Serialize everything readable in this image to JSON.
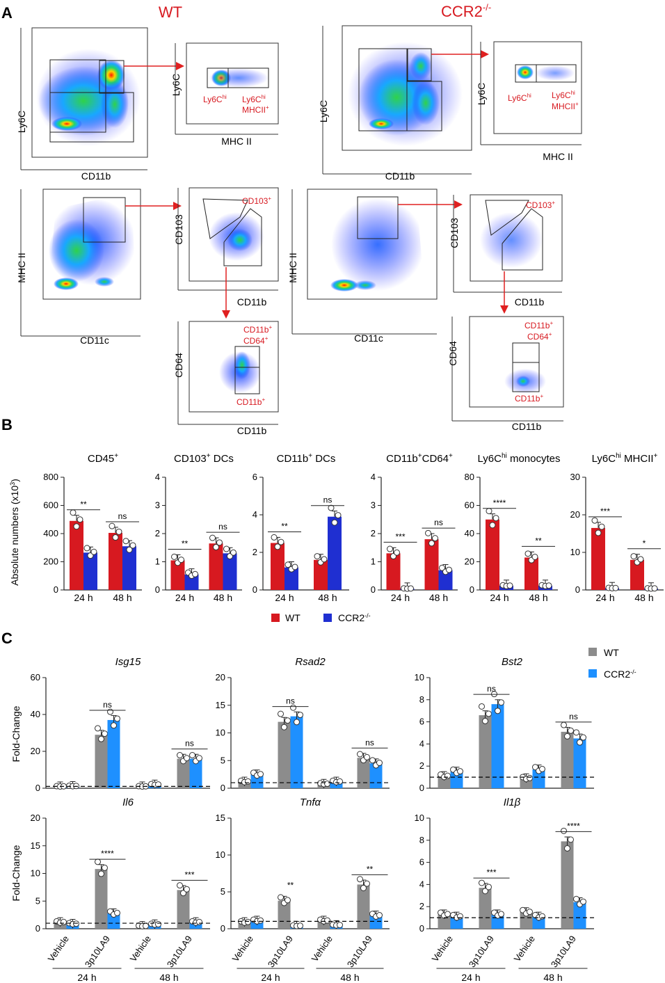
{
  "panel_labels": {
    "a": "A",
    "b": "B",
    "c": "C"
  },
  "panelA": {
    "wt_title": "WT",
    "ccr2_title": "CCR2",
    "ccr2_sup": "-/-",
    "axes": {
      "ly6c": "Ly6C",
      "cd11b": "CD11b",
      "mhcii": "MHC II",
      "cd11c": "CD11c",
      "cd103": "CD103",
      "cd64": "CD64"
    },
    "gates": {
      "ly6c_main": "Ly6C",
      "ly6c_hi_sup": "hi",
      "mhcii_plus": "MHCII",
      "plus_sup": "+",
      "cd103": "CD103",
      "cd11b": "CD11b",
      "cd64": "CD64"
    }
  },
  "panelB": {
    "ylabel": "Absolute numbers (x10",
    "ylabel_sup": "3",
    "ylabel_end": ")",
    "xlabels": [
      "24 h",
      "48 h"
    ],
    "legend": [
      {
        "label": "WT",
        "color": "#d71920"
      },
      {
        "label": "CCR2",
        "sup": "-/-",
        "color": "#1f2fd1"
      }
    ]
  },
  "panelC": {
    "ylabel": "Fold-Change",
    "xlabels": [
      "Vehicle",
      "3p10LA9",
      "Vehicle",
      "3p10LA9"
    ],
    "time_labels": [
      "24 h",
      "48 h"
    ],
    "legend": [
      {
        "label": "WT",
        "color": "#8c8c8c"
      },
      {
        "label": "CCR2",
        "sup": "-/-",
        "color": "#1e90ff"
      }
    ]
  },
  "chart_data": [
    {
      "type": "bar",
      "id": "b_cd45",
      "title": "CD45",
      "title_sup": "+",
      "categories": [
        "24 h",
        "48 h"
      ],
      "ylim": [
        0,
        800
      ],
      "ticks": [
        0,
        200,
        400,
        600,
        800
      ],
      "series": [
        {
          "name": "WT",
          "values": [
            490,
            405
          ]
        },
        {
          "name": "CCR2-/-",
          "values": [
            265,
            310
          ]
        }
      ],
      "sig": [
        {
          "label": "**"
        },
        {
          "label": "ns"
        }
      ]
    },
    {
      "type": "bar",
      "id": "b_cd103",
      "title": "CD103",
      "title_sup": "+",
      "title_tail": " DCs",
      "categories": [
        "24 h",
        "48 h"
      ],
      "ylim": [
        0,
        4
      ],
      "ticks": [
        0,
        1,
        2,
        3,
        4
      ],
      "series": [
        {
          "name": "WT",
          "values": [
            1.05,
            1.65
          ]
        },
        {
          "name": "CCR2-/-",
          "values": [
            0.55,
            1.3
          ]
        }
      ],
      "sig": [
        {
          "label": "**"
        },
        {
          "label": "ns"
        }
      ]
    },
    {
      "type": "bar",
      "id": "b_cd11b",
      "title": "CD11b",
      "title_sup": "+",
      "title_tail": " DCs",
      "categories": [
        "24 h",
        "48 h"
      ],
      "ylim": [
        0,
        6
      ],
      "ticks": [
        0,
        2,
        4,
        6
      ],
      "series": [
        {
          "name": "WT",
          "values": [
            2.5,
            1.6
          ]
        },
        {
          "name": "CCR2-/-",
          "values": [
            1.2,
            3.9
          ]
        }
      ],
      "sig": [
        {
          "label": "**"
        },
        {
          "label": "ns"
        }
      ]
    },
    {
      "type": "bar",
      "id": "b_cd64",
      "title": "CD11b",
      "title_sup": "+",
      "title_mid": "CD64",
      "title_sup2": "+",
      "categories": [
        "24 h",
        "48 h"
      ],
      "ylim": [
        0,
        4
      ],
      "ticks": [
        0,
        1,
        2,
        3,
        4
      ],
      "series": [
        {
          "name": "WT",
          "values": [
            1.3,
            1.8
          ]
        },
        {
          "name": "CCR2-/-",
          "values": [
            0.05,
            0.7
          ]
        }
      ],
      "sig": [
        {
          "label": "***"
        },
        {
          "label": "ns"
        }
      ]
    },
    {
      "type": "bar",
      "id": "b_mono",
      "title": "Ly6C",
      "title_sup": "hi",
      "title_tail": " monocytes",
      "categories": [
        "24 h",
        "48 h"
      ],
      "ylim": [
        0,
        80
      ],
      "ticks": [
        0,
        20,
        40,
        60,
        80
      ],
      "series": [
        {
          "name": "WT",
          "values": [
            50,
            23
          ]
        },
        {
          "name": "CCR2-/-",
          "values": [
            3,
            3
          ]
        }
      ],
      "sig": [
        {
          "label": "****"
        },
        {
          "label": "**"
        }
      ]
    },
    {
      "type": "bar",
      "id": "b_mhc",
      "title": "Ly6C",
      "title_sup": "hi",
      "title_tail": " MHCII",
      "title_sup2": "+",
      "categories": [
        "24 h",
        "48 h"
      ],
      "ylim": [
        0,
        30
      ],
      "ticks": [
        0,
        10,
        20,
        30
      ],
      "series": [
        {
          "name": "WT",
          "values": [
            16.5,
            8
          ]
        },
        {
          "name": "CCR2-/-",
          "values": [
            0.5,
            0.4
          ]
        }
      ],
      "sig": [
        {
          "label": "***"
        },
        {
          "label": "*"
        }
      ]
    },
    {
      "type": "bar",
      "id": "c_isg15",
      "title": "Isg15",
      "categories": [
        "Vehicle",
        "3p10LA9",
        "Vehicle",
        "3p10LA9"
      ],
      "ylim": [
        0,
        60
      ],
      "ticks": [
        0,
        20,
        40,
        60
      ],
      "series": [
        {
          "name": "WT",
          "values": [
            1,
            29,
            1,
            16
          ]
        },
        {
          "name": "CCR2-/-",
          "values": [
            1.2,
            37,
            2,
            16
          ]
        }
      ],
      "sig": [
        {
          "label": "ns"
        },
        {
          "label": "ns"
        }
      ]
    },
    {
      "type": "bar",
      "id": "c_rsad2",
      "title": "Rsad2",
      "categories": [
        "Vehicle",
        "3p10LA9",
        "Vehicle",
        "3p10LA9"
      ],
      "ylim": [
        0,
        20
      ],
      "ticks": [
        0,
        5,
        10,
        15,
        20
      ],
      "series": [
        {
          "name": "WT",
          "values": [
            1.2,
            12,
            0.8,
            5.5
          ]
        },
        {
          "name": "CCR2-/-",
          "values": [
            2.5,
            13,
            1.2,
            4.5
          ]
        }
      ],
      "sig": [
        {
          "label": "ns"
        },
        {
          "label": "ns"
        }
      ]
    },
    {
      "type": "bar",
      "id": "c_bst2",
      "title": "Bst2",
      "categories": [
        "Vehicle",
        "3p10LA9",
        "Vehicle",
        "3p10LA9"
      ],
      "ylim": [
        0,
        10
      ],
      "ticks": [
        0,
        2,
        4,
        6,
        8,
        10
      ],
      "series": [
        {
          "name": "WT",
          "values": [
            1.1,
            6.6,
            0.9,
            5.1
          ]
        },
        {
          "name": "CCR2-/-",
          "values": [
            1.5,
            7.6,
            1.7,
            4.5
          ]
        }
      ],
      "sig": [
        {
          "label": "ns"
        },
        {
          "label": "ns"
        }
      ]
    },
    {
      "type": "bar",
      "id": "c_il6",
      "title": "Il6",
      "categories": [
        "Vehicle",
        "3p10LA9",
        "Vehicle",
        "3p10LA9"
      ],
      "ylim": [
        0,
        20
      ],
      "ticks": [
        0,
        5,
        10,
        15,
        20
      ],
      "series": [
        {
          "name": "WT",
          "values": [
            1.2,
            10.8,
            0.5,
            7
          ]
        },
        {
          "name": "CCR2-/-",
          "values": [
            0.9,
            2.8,
            0.8,
            1.2
          ]
        }
      ],
      "sig": [
        {
          "label": "****"
        },
        {
          "label": "***"
        }
      ]
    },
    {
      "type": "bar",
      "id": "c_tnfa",
      "title": "Tnfα",
      "categories": [
        "Vehicle",
        "3p10LA9",
        "Vehicle",
        "3p10LA9"
      ],
      "ylim": [
        0,
        15
      ],
      "ticks": [
        0,
        5,
        10,
        15
      ],
      "series": [
        {
          "name": "WT",
          "values": [
            0.9,
            3.8,
            1.1,
            6
          ]
        },
        {
          "name": "CCR2-/-",
          "values": [
            1.1,
            0.4,
            0.5,
            1.8
          ]
        }
      ],
      "sig": [
        {
          "label": "**",
          "nobar": true
        },
        {
          "label": "**"
        }
      ]
    },
    {
      "type": "bar",
      "id": "c_il1b",
      "title": "Il1β",
      "categories": [
        "Vehicle",
        "3p10LA9",
        "Vehicle",
        "3p10LA9"
      ],
      "ylim": [
        0,
        10
      ],
      "ticks": [
        0,
        2,
        4,
        6,
        8,
        10
      ],
      "series": [
        {
          "name": "WT",
          "values": [
            1.3,
            3.7,
            1.5,
            7.9
          ]
        },
        {
          "name": "CCR2-/-",
          "values": [
            1.1,
            1.3,
            1.1,
            2.4
          ]
        }
      ],
      "sig": [
        {
          "label": "***"
        },
        {
          "label": "****"
        }
      ]
    }
  ]
}
